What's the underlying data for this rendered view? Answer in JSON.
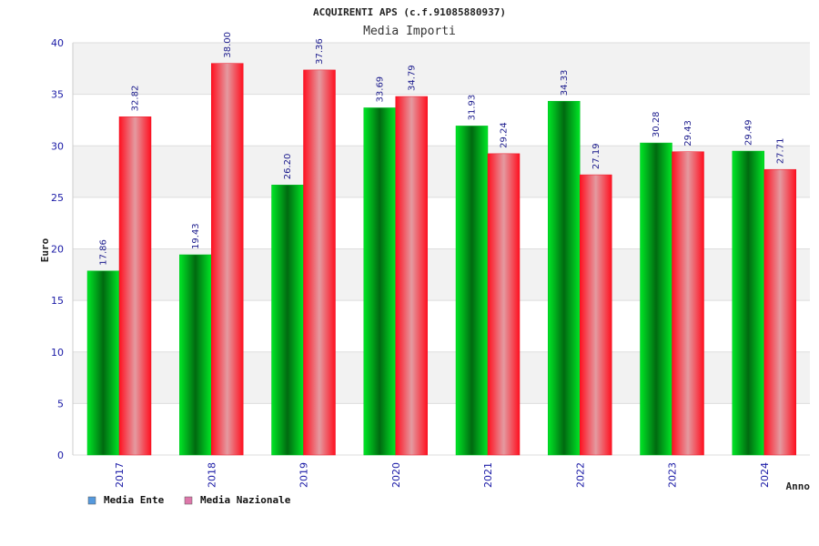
{
  "colors": {
    "ente": "#00c020",
    "nazionale": "#ee1122",
    "band": "#f2f2f2",
    "grid": "#dddddd",
    "axis_text": "#1a1aa6",
    "legend_ente": "#5599dd",
    "legend_nazionale": "#dd77aa"
  },
  "chart_data": {
    "type": "bar",
    "title": "ACQUIRENTI APS (c.f.91085880937)",
    "subtitle": "Media Importi",
    "xlabel": "Anno",
    "ylabel": "Euro",
    "ylim": [
      0,
      40
    ],
    "yticks": [
      "0",
      "5",
      "10",
      "15",
      "20",
      "25",
      "30",
      "35",
      "40"
    ],
    "grid": true,
    "legend_position": "bottom-left",
    "categories": [
      "2017",
      "2018",
      "2019",
      "2020",
      "2021",
      "2022",
      "2023",
      "2024"
    ],
    "series": [
      {
        "name": "Media Ente",
        "values": [
          17.86,
          19.43,
          26.2,
          33.69,
          31.93,
          34.33,
          30.28,
          29.49
        ],
        "labels": [
          "17.86",
          "19.43",
          "26.20",
          "33.69",
          "31.93",
          "34.33",
          "30.28",
          "29.49"
        ]
      },
      {
        "name": "Media Nazionale",
        "values": [
          32.82,
          38.0,
          37.36,
          34.79,
          29.24,
          27.19,
          29.43,
          27.71
        ],
        "labels": [
          "32.82",
          "38.00",
          "37.36",
          "34.79",
          "29.24",
          "27.19",
          "29.43",
          "27.71"
        ]
      }
    ]
  }
}
